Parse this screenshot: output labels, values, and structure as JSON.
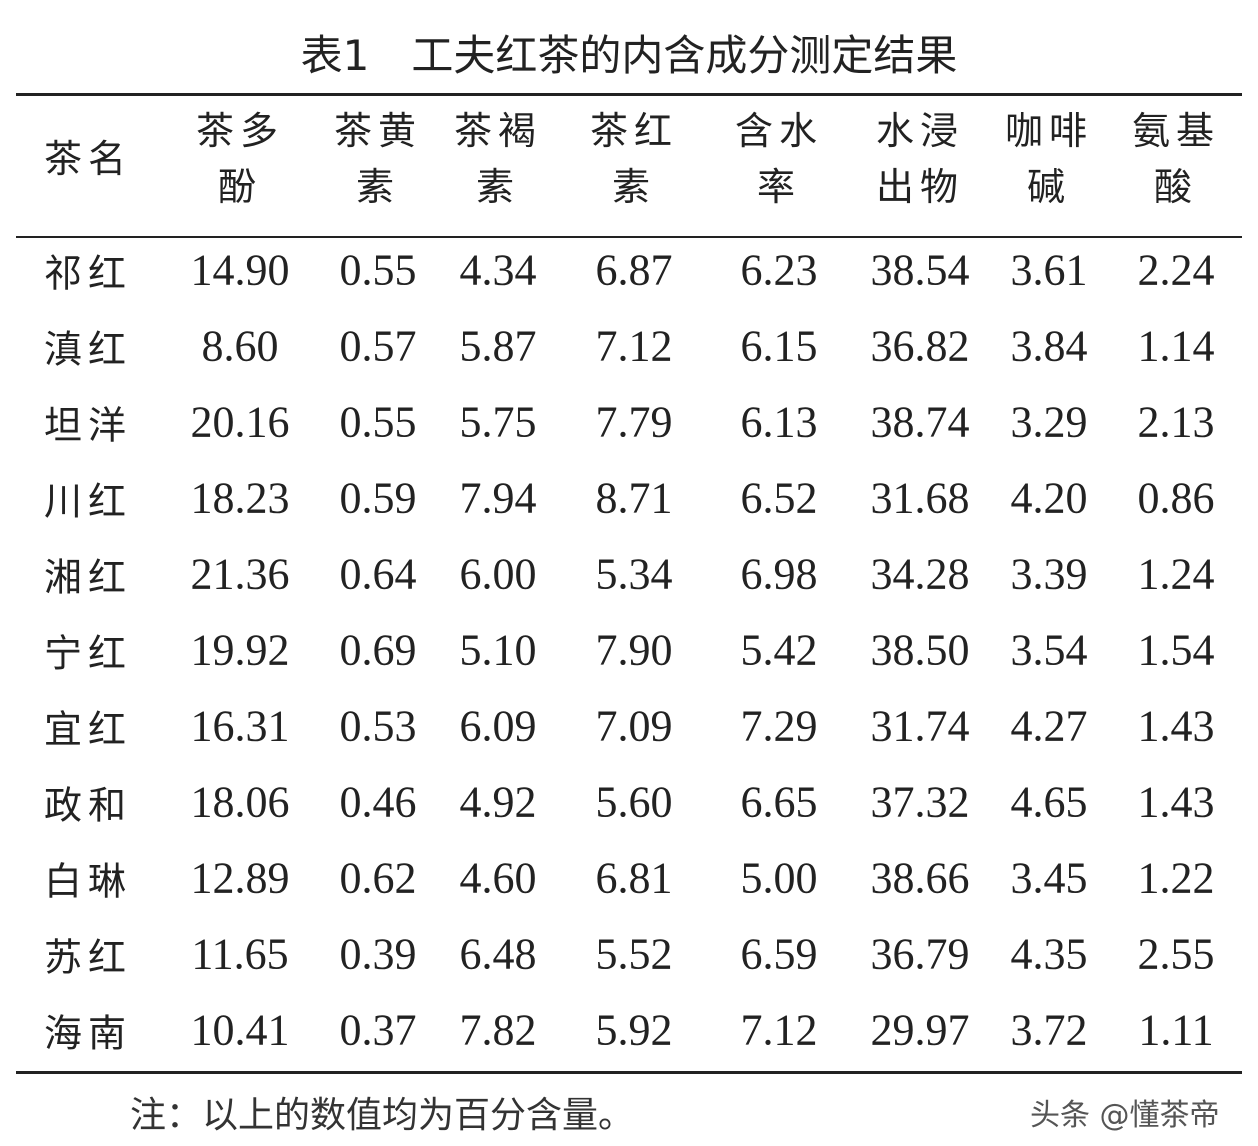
{
  "title": "表1　工夫红茶的内含成分测定结果",
  "table": {
    "header": [
      [
        "茶名"
      ],
      [
        "茶多",
        "酚"
      ],
      [
        "茶黄",
        "素"
      ],
      [
        "茶褐",
        "素"
      ],
      [
        "茶红",
        "素"
      ],
      [
        "含水",
        "率"
      ],
      [
        "水浸",
        "出物"
      ],
      [
        "咖啡",
        "碱"
      ],
      [
        "氨基",
        "酸"
      ]
    ],
    "rows": [
      [
        "祁红",
        "14.90",
        "0.55",
        "4.34",
        "6.87",
        "6.23",
        "38.54",
        "3.61",
        "2.24"
      ],
      [
        "滇红",
        "8.60",
        "0.57",
        "5.87",
        "7.12",
        "6.15",
        "36.82",
        "3.84",
        "1.14"
      ],
      [
        "坦洋",
        "20.16",
        "0.55",
        "5.75",
        "7.79",
        "6.13",
        "38.74",
        "3.29",
        "2.13"
      ],
      [
        "川红",
        "18.23",
        "0.59",
        "7.94",
        "8.71",
        "6.52",
        "31.68",
        "4.20",
        "0.86"
      ],
      [
        "湘红",
        "21.36",
        "0.64",
        "6.00",
        "5.34",
        "6.98",
        "34.28",
        "3.39",
        "1.24"
      ],
      [
        "宁红",
        "19.92",
        "0.69",
        "5.10",
        "7.90",
        "5.42",
        "38.50",
        "3.54",
        "1.54"
      ],
      [
        "宜红",
        "16.31",
        "0.53",
        "6.09",
        "7.09",
        "7.29",
        "31.74",
        "4.27",
        "1.43"
      ],
      [
        "政和",
        "18.06",
        "0.46",
        "4.92",
        "5.60",
        "6.65",
        "37.32",
        "4.65",
        "1.43"
      ],
      [
        "白琳",
        "12.89",
        "0.62",
        "4.60",
        "6.81",
        "5.00",
        "38.66",
        "3.45",
        "1.22"
      ],
      [
        "苏红",
        "11.65",
        "0.39",
        "6.48",
        "5.52",
        "6.59",
        "36.79",
        "4.35",
        "2.55"
      ],
      [
        "海南",
        "10.41",
        "0.37",
        "7.82",
        "5.92",
        "7.12",
        "29.97",
        "3.72",
        "1.11"
      ]
    ]
  },
  "note": "注：以上的数值均为百分含量。",
  "watermark": "头条 @懂茶帝"
}
